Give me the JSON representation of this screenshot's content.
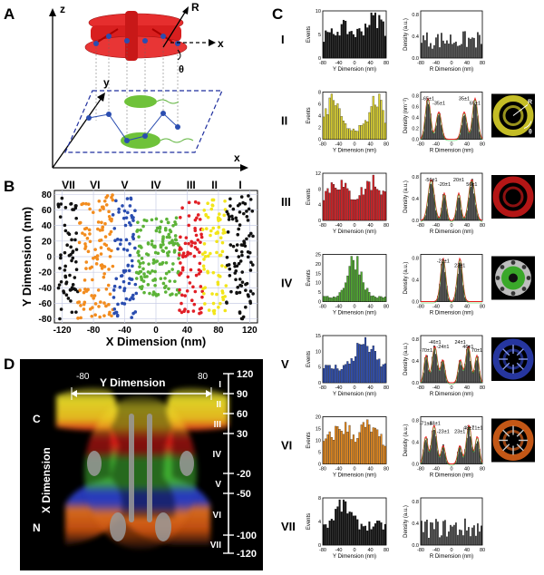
{
  "panels": {
    "a": "A",
    "b": "B",
    "c": "C",
    "d": "D"
  },
  "panel_a": {
    "axis_z": "z",
    "axis_y": "y",
    "axis_x_top": "x",
    "axis_x_bottom": "x",
    "label_r": "R",
    "label_theta": "θ"
  },
  "chart_data": [
    {
      "type": "scatter",
      "panel": "B",
      "xlabel": "X Dimension (nm)",
      "ylabel": "Y Dimension (nm)",
      "xlim": [
        -130,
        130
      ],
      "ylim": [
        -85,
        85
      ],
      "xticks": [
        "-120",
        "-80",
        "-40",
        "0",
        "40",
        "80",
        "120"
      ],
      "yticks": [
        "80",
        "60",
        "40",
        "20",
        "0",
        "-20",
        "-40",
        "-60",
        "-80"
      ],
      "grid": true,
      "region_labels": [
        "VII",
        "VI",
        "V",
        "IV",
        "III",
        "II",
        "I"
      ],
      "series": [
        {
          "color": "#111111",
          "x_range": [
            -125,
            -100
          ],
          "y_range": [
            -80,
            80
          ]
        },
        {
          "color": "#f28c1e",
          "x_range": [
            -100,
            -55
          ],
          "y_range": [
            -80,
            80
          ]
        },
        {
          "color": "#2a4db0",
          "x_range": [
            -55,
            -25
          ],
          "y_range": [
            -80,
            80
          ]
        },
        {
          "color": "#5cb338",
          "x_range": [
            -25,
            30
          ],
          "y_range": [
            -50,
            50
          ]
        },
        {
          "color": "#e11f26",
          "x_range": [
            30,
            60
          ],
          "y_range": [
            -75,
            75
          ]
        },
        {
          "color": "#f2e51a",
          "x_range": [
            60,
            90
          ],
          "y_range": [
            -75,
            75
          ]
        },
        {
          "color": "#111111",
          "x_range": [
            90,
            125
          ],
          "y_range": [
            -80,
            80
          ]
        }
      ]
    },
    {
      "type": "bar",
      "panel": "C",
      "left_xlabel": "Y Dimension (nm)",
      "left_ylabel": "Events",
      "right_xlabel": "R Dimension (nm)",
      "right_ylabel_default": "Density (a.u.)",
      "right_ylabel_II": "Density (nm⁻²)",
      "left_xticks": [
        "-80",
        "-40",
        "0",
        "40",
        "80"
      ],
      "right_xticks": [
        "-80",
        "-40",
        "0",
        "40",
        "80"
      ],
      "rows": [
        {
          "label": "I",
          "color": "#111111",
          "events_max": 10,
          "events_ticks": [
            "0",
            "5",
            "10"
          ],
          "density_ticks": [
            "0.0",
            "0.4",
            "0.8"
          ],
          "annotations": [],
          "thumb": ""
        },
        {
          "label": "II",
          "color": "#e0d630",
          "events_max": 8,
          "events_ticks": [
            "0",
            "2",
            "4",
            "6",
            "8"
          ],
          "density_ticks": [
            "0.0",
            "0.2",
            "0.4",
            "0.6",
            "0.8"
          ],
          "annotations": [
            "-65±1",
            "-35±1",
            "35±1",
            "65±1"
          ],
          "thumb": "yellow"
        },
        {
          "label": "III",
          "color": "#d61e23",
          "events_max": 12,
          "events_ticks": [
            "0",
            "4",
            "8",
            "12"
          ],
          "density_ticks": [
            "0.0",
            "0.4",
            "0.8"
          ],
          "annotations": [
            "-56±1",
            "-20±1",
            "20±1",
            "56±1"
          ],
          "thumb": "red"
        },
        {
          "label": "IV",
          "color": "#4ea82f",
          "events_max": 25,
          "events_ticks": [
            "0",
            "5",
            "10",
            "15",
            "20",
            "25"
          ],
          "density_ticks": [
            "0.0",
            "0.4",
            "0.8"
          ],
          "annotations": [
            "-23±1",
            "23±1"
          ],
          "thumb": "green"
        },
        {
          "label": "V",
          "color": "#2c4cb0",
          "events_max": 15,
          "events_ticks": [
            "0",
            "5",
            "10",
            "15"
          ],
          "density_ticks": [
            "0.0",
            "0.4",
            "0.8"
          ],
          "annotations": [
            "-46±1",
            "-24±1",
            "24±1",
            "46±1",
            "-70±1",
            "70±1"
          ],
          "thumb": "blue"
        },
        {
          "label": "VI",
          "color": "#e88a1c",
          "events_max": 20,
          "events_ticks": [
            "0",
            "5",
            "10",
            "15",
            "20"
          ],
          "density_ticks": [
            "0.0",
            "0.4",
            "0.8"
          ],
          "annotations": [
            "-48±1",
            "48±1",
            "-71±1",
            "71±1",
            "-23±1",
            "23±1"
          ],
          "thumb": "orange"
        },
        {
          "label": "VII",
          "color": "#111111",
          "events_max": 8,
          "events_ticks": [
            "0",
            "4",
            "8"
          ],
          "density_ticks": [
            "0.0",
            "0.4",
            "0.8"
          ],
          "annotations": [],
          "thumb": ""
        }
      ],
      "thumb_labels": {
        "r": "R",
        "theta": "θ"
      }
    }
  ],
  "panel_d": {
    "y_dimension": "Y Dimension",
    "y_left": "-80",
    "y_right": "80",
    "x_dimension": "X Dimension",
    "c_label": "C",
    "n_label": "N",
    "scale_ticks": [
      "120",
      "90",
      "60",
      "30",
      "-20",
      "-50",
      "-100",
      "-120"
    ],
    "scale_regions": [
      "I",
      "II",
      "III",
      "IV",
      "V",
      "VI",
      "VII"
    ]
  }
}
